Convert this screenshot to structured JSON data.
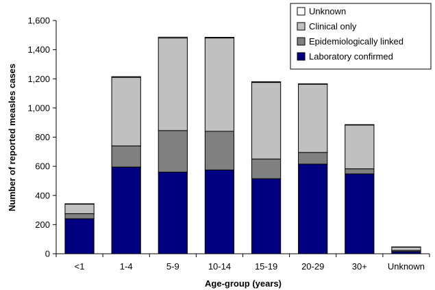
{
  "chart_data": {
    "type": "bar",
    "stacked": true,
    "title": "",
    "xlabel": "Age-group (years)",
    "ylabel": "Number of reported measles cases",
    "ylim": [
      0,
      1600
    ],
    "yticks": [
      "0",
      "200",
      "400",
      "600",
      "800",
      "1,000",
      "1,200",
      "1,400",
      "1,600"
    ],
    "ytick_values": [
      0,
      200,
      400,
      600,
      800,
      1000,
      1200,
      1400,
      1600
    ],
    "grid": false,
    "legend_position": "top-right",
    "categories": [
      "<1",
      "1-4",
      "5-9",
      "10-14",
      "15-19",
      "20-29",
      "30+",
      "Unknown"
    ],
    "series": [
      {
        "name": "Laboratory confirmed",
        "color": "#000080",
        "values": [
          240,
          595,
          560,
          575,
          515,
          615,
          548,
          15
        ]
      },
      {
        "name": "Epidemiologically linked",
        "color": "#808080",
        "values": [
          35,
          145,
          285,
          265,
          135,
          80,
          35,
          8
        ]
      },
      {
        "name": "Clinical only",
        "color": "#c0c0c0",
        "values": [
          65,
          470,
          635,
          640,
          525,
          468,
          300,
          22
        ]
      },
      {
        "name": "Unknown",
        "color": "#ffffff",
        "values": [
          3,
          5,
          6,
          5,
          5,
          3,
          3,
          2
        ]
      }
    ],
    "legend_order": [
      3,
      2,
      1,
      0
    ]
  }
}
